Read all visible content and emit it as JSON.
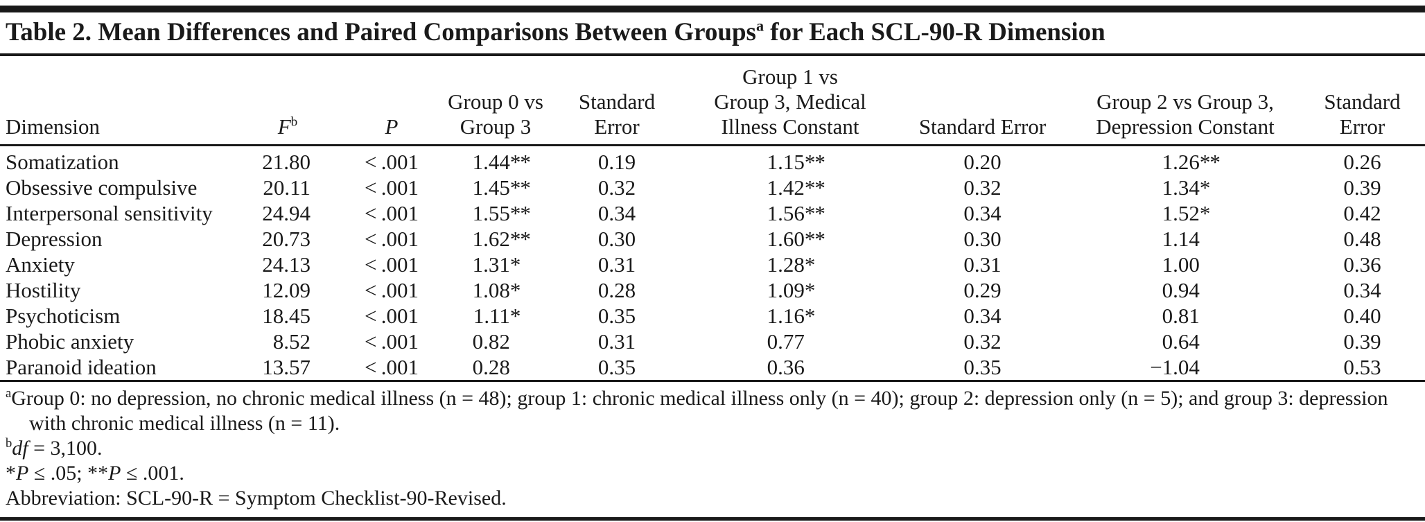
{
  "title": {
    "pre": "Table 2. Mean Differences and Paired Comparisons Between Groups",
    "sup": "a",
    "post": " for Each SCL-90-R Dimension"
  },
  "header": {
    "dimension": "Dimension",
    "f": "F",
    "f_sup": "b",
    "p": "P",
    "g0v3": "Group 0 vs\nGroup 3",
    "se1": "Standard\nError",
    "g1v3": "Group 1 vs\nGroup 3, Medical\nIllness Constant",
    "se2": "Standard Error",
    "g2v3": "Group 2 vs Group 3,\nDepression Constant",
    "se3": "Standard\nError"
  },
  "rows": [
    {
      "dimension": "Somatization",
      "f": "21.80",
      "p": "< .001",
      "g0": "1.44",
      "g0sig": "**",
      "se1": "0.19",
      "g1": "1.15",
      "g1sig": "**",
      "se2": "0.20",
      "g2": "1.26",
      "g2sig": "**",
      "se3": "0.26"
    },
    {
      "dimension": "Obsessive compulsive",
      "f": "20.11",
      "p": "< .001",
      "g0": "1.45",
      "g0sig": "**",
      "se1": "0.32",
      "g1": "1.42",
      "g1sig": "**",
      "se2": "0.32",
      "g2": "1.34",
      "g2sig": "*",
      "se3": "0.39"
    },
    {
      "dimension": "Interpersonal sensitivity",
      "f": "24.94",
      "p": "< .001",
      "g0": "1.55",
      "g0sig": "**",
      "se1": "0.34",
      "g1": "1.56",
      "g1sig": "**",
      "se2": "0.34",
      "g2": "1.52",
      "g2sig": "*",
      "se3": "0.42"
    },
    {
      "dimension": "Depression",
      "f": "20.73",
      "p": "< .001",
      "g0": "1.62",
      "g0sig": "**",
      "se1": "0.30",
      "g1": "1.60",
      "g1sig": "**",
      "se2": "0.30",
      "g2": "1.14",
      "g2sig": "",
      "se3": "0.48"
    },
    {
      "dimension": "Anxiety",
      "f": "24.13",
      "p": "< .001",
      "g0": "1.31",
      "g0sig": "*",
      "se1": "0.31",
      "g1": "1.28",
      "g1sig": "*",
      "se2": "0.31",
      "g2": "1.00",
      "g2sig": "",
      "se3": "0.36"
    },
    {
      "dimension": "Hostility",
      "f": "12.09",
      "p": "< .001",
      "g0": "1.08",
      "g0sig": "*",
      "se1": "0.28",
      "g1": "1.09",
      "g1sig": "*",
      "se2": "0.29",
      "g2": "0.94",
      "g2sig": "",
      "se3": "0.34"
    },
    {
      "dimension": "Psychoticism",
      "f": "18.45",
      "p": "< .001",
      "g0": "1.11",
      "g0sig": "*",
      "se1": "0.35",
      "g1": "1.16",
      "g1sig": "*",
      "se2": "0.34",
      "g2": "0.81",
      "g2sig": "",
      "se3": "0.40"
    },
    {
      "dimension": "Phobic anxiety",
      "f": "8.52",
      "p": "< .001",
      "g0": "0.82",
      "g0sig": "",
      "se1": "0.31",
      "g1": "0.77",
      "g1sig": "",
      "se2": "0.32",
      "g2": "0.64",
      "g2sig": "",
      "se3": "0.39"
    },
    {
      "dimension": "Paranoid ideation",
      "f": "13.57",
      "p": "< .001",
      "g0": "0.28",
      "g0sig": "",
      "se1": "0.35",
      "g1": "0.36",
      "g1sig": "",
      "se2": "0.35",
      "g2": "−1.04",
      "g2sig": "",
      "se3": "0.53"
    }
  ],
  "footnotes": {
    "a_sup": "a",
    "a_text": "Group 0: no depression, no chronic medical illness (n = 48); group 1: chronic medical illness only (n = 40); group 2: depression only (n = 5); and group 3: depression with chronic medical illness (n = 11).",
    "b_sup": "b",
    "b_italic": "df",
    "b_text": " = 3,100.",
    "sig_star1": "*",
    "sig_p1": "P",
    "sig_text1": " ≤ .05; ",
    "sig_star2": "**",
    "sig_p2": "P",
    "sig_text2": " ≤ .001.",
    "abbreviation": "Abbreviation: SCL-90-R = Symptom Checklist-90-Revised."
  }
}
